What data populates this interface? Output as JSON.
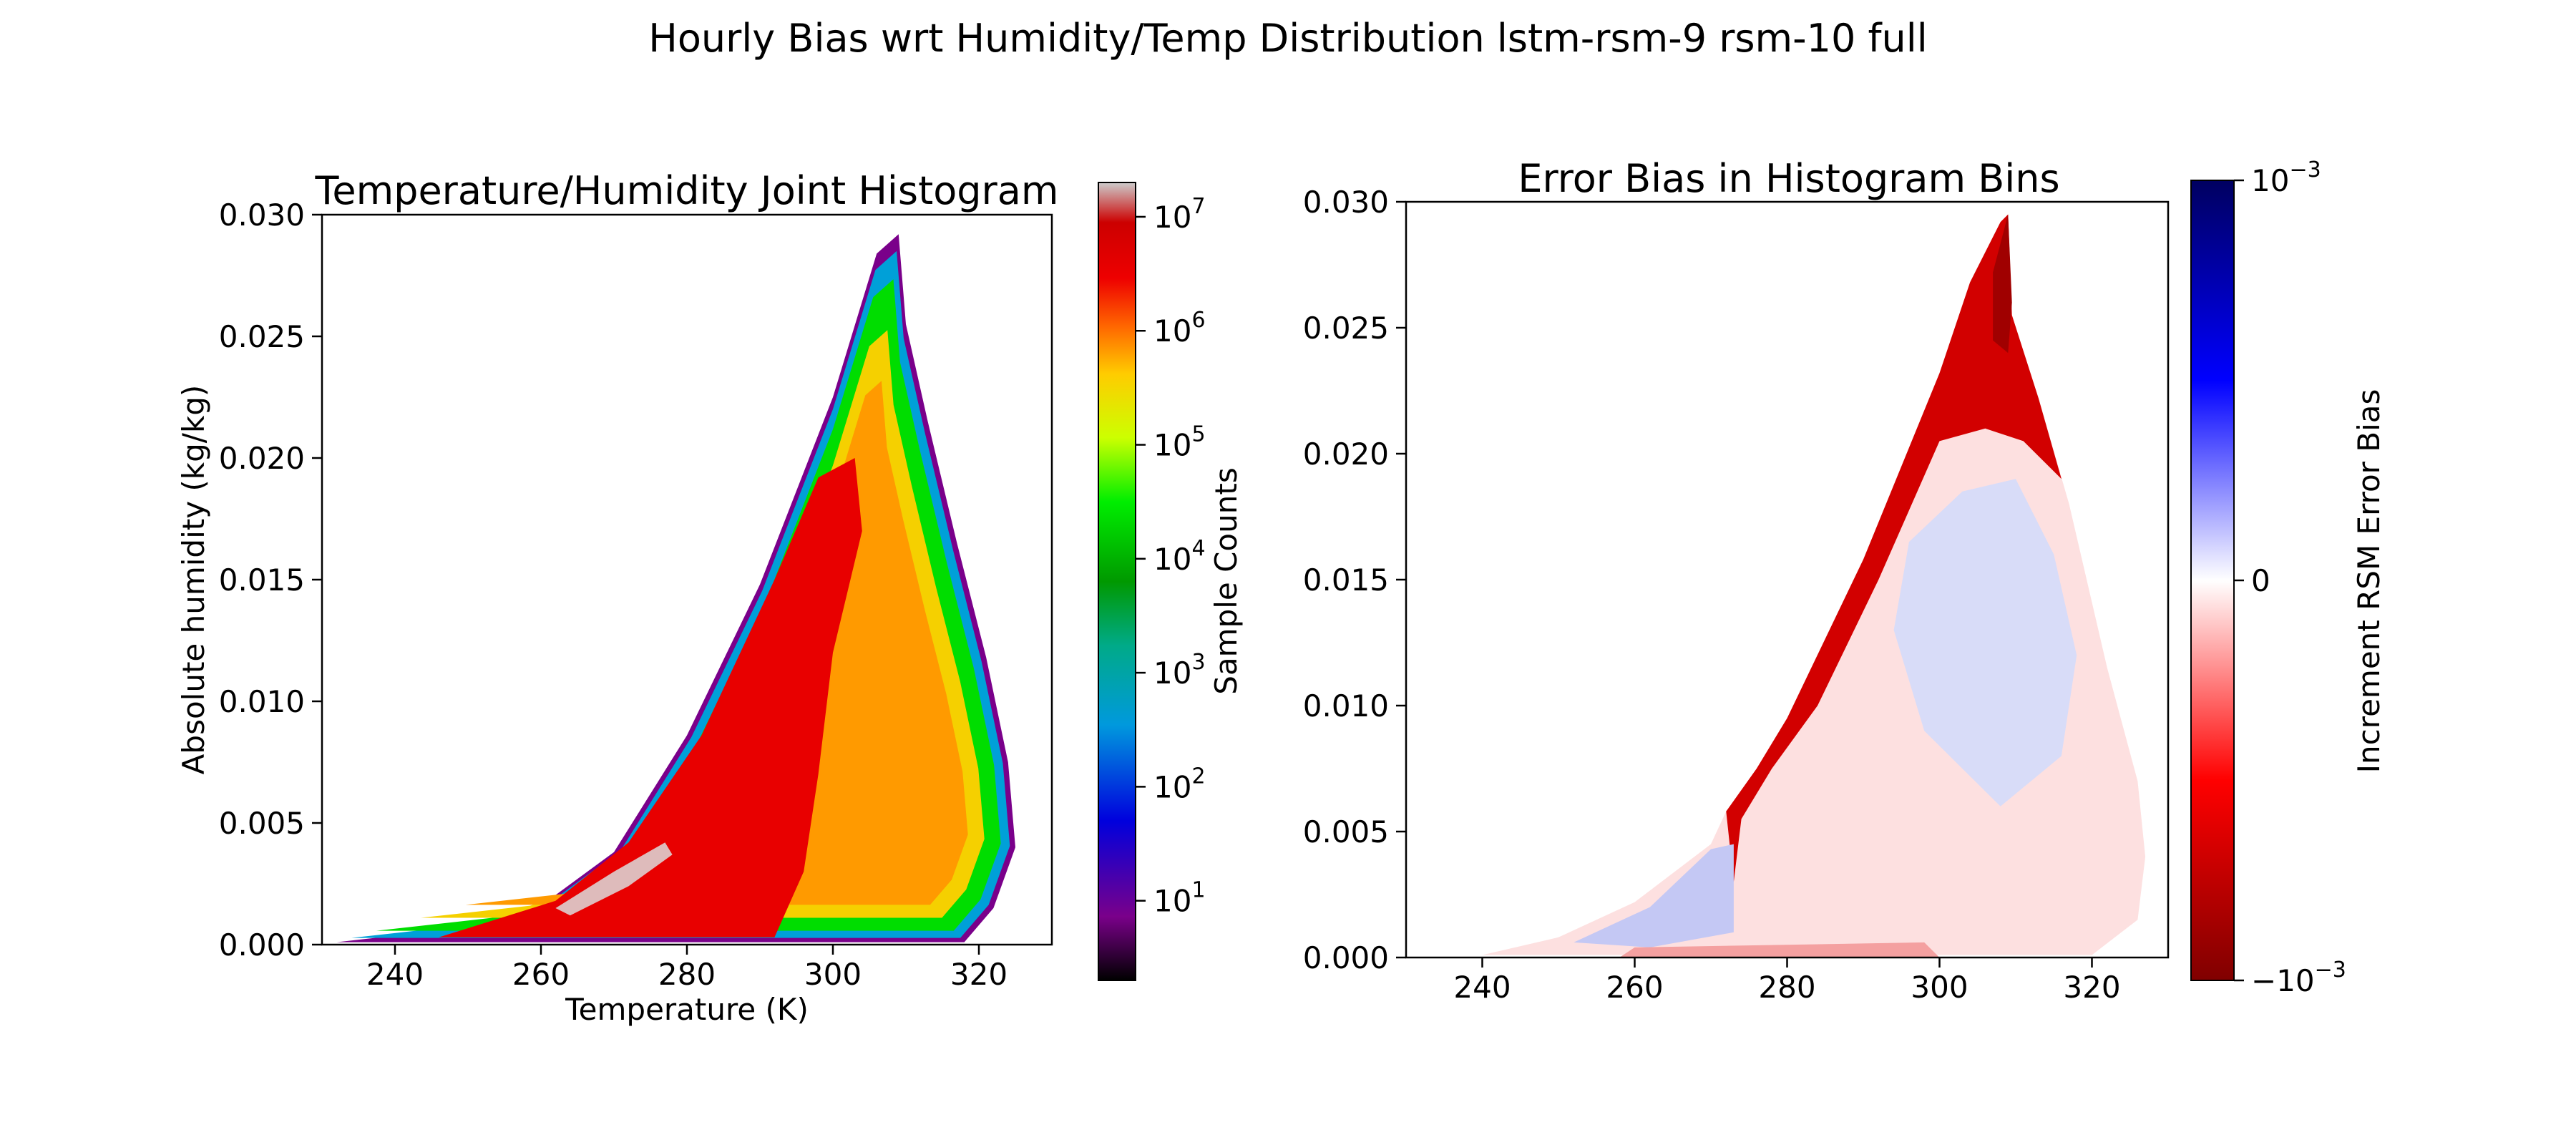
{
  "figure": {
    "suptitle": "Hourly Bias wrt Humidity/Temp Distribution lstm-rsm-9 rsm-10 full"
  },
  "chart_data": [
    {
      "type": "heatmap",
      "title": "Temperature/Humidity Joint Histogram",
      "xlabel": "Temperature (K)",
      "ylabel": "Absolute humidity (kg/kg)",
      "xlim": [
        230,
        330
      ],
      "ylim": [
        0.0,
        0.03
      ],
      "xticks": [
        240,
        260,
        280,
        300,
        320
      ],
      "yticks": [
        "0.000",
        "0.005",
        "0.010",
        "0.015",
        "0.020",
        "0.025",
        "0.030"
      ],
      "colorbar": {
        "label": "Sample Counts",
        "scale": "log",
        "range": [
          2,
          20000000
        ],
        "ticks": [
          {
            "base": "10",
            "exp": "1",
            "value": 10
          },
          {
            "base": "10",
            "exp": "2",
            "value": 100
          },
          {
            "base": "10",
            "exp": "3",
            "value": 1000
          },
          {
            "base": "10",
            "exp": "4",
            "value": 10000
          },
          {
            "base": "10",
            "exp": "5",
            "value": 100000
          },
          {
            "base": "10",
            "exp": "6",
            "value": 1000000
          },
          {
            "base": "10",
            "exp": "7",
            "value": 10000000
          }
        ],
        "colormap": "nipy_spectral"
      },
      "data_boundary": {
        "upper_edge": [
          [
            232,
            0.0001
          ],
          [
            250,
            0.0007
          ],
          [
            260,
            0.0016
          ],
          [
            270,
            0.0038
          ],
          [
            280,
            0.0086
          ],
          [
            290,
            0.0148
          ],
          [
            300,
            0.0225
          ],
          [
            306,
            0.0284
          ],
          [
            309,
            0.0292
          ]
        ],
        "lower_edge": [
          [
            309,
            0.0292
          ],
          [
            310,
            0.0255
          ],
          [
            313,
            0.0215
          ],
          [
            317,
            0.0165
          ],
          [
            321,
            0.0118
          ],
          [
            324,
            0.0075
          ],
          [
            325,
            0.004
          ],
          [
            322,
            0.0015
          ],
          [
            318,
            0.0001
          ]
        ]
      },
      "density_peak": {
        "temperature": 275,
        "humidity": 0.003
      }
    },
    {
      "type": "heatmap",
      "title": "Error Bias in Histogram Bins",
      "xlabel": "",
      "ylabel": "",
      "xlim": [
        230,
        330
      ],
      "ylim": [
        0.0,
        0.03
      ],
      "xticks": [
        240,
        260,
        280,
        300,
        320
      ],
      "yticks": [
        "0.000",
        "0.005",
        "0.010",
        "0.015",
        "0.020",
        "0.025",
        "0.030"
      ],
      "colorbar": {
        "label": "Increment RSM Error Bias",
        "scale": "symlog",
        "range": [
          -0.001,
          0.001
        ],
        "ticks": [
          {
            "prefix": "−",
            "base": "10",
            "exp": "−3",
            "value": -0.001
          },
          {
            "text": "0",
            "value": 0
          },
          {
            "prefix": "",
            "base": "10",
            "exp": "−3",
            "value": 0.001
          }
        ],
        "colormap": "seismic_r"
      },
      "data_boundary": {
        "upper_edge": [
          [
            240,
            0.0001
          ],
          [
            250,
            0.0008
          ],
          [
            260,
            0.0022
          ],
          [
            270,
            0.0045
          ],
          [
            272,
            0.0058
          ],
          [
            276,
            0.0075
          ],
          [
            280,
            0.0095
          ],
          [
            290,
            0.0158
          ],
          [
            300,
            0.0232
          ],
          [
            304,
            0.0268
          ],
          [
            308,
            0.0292
          ],
          [
            309,
            0.0295
          ]
        ],
        "lower_edge": [
          [
            309,
            0.0295
          ],
          [
            309.5,
            0.0255
          ],
          [
            313,
            0.0222
          ],
          [
            317,
            0.018
          ],
          [
            322,
            0.0115
          ],
          [
            326,
            0.007
          ],
          [
            327,
            0.004
          ],
          [
            326,
            0.0015
          ],
          [
            320,
            0.0001
          ]
        ]
      },
      "regions": [
        {
          "description": "strong negative bias along humid edge",
          "sign": "negative"
        },
        {
          "description": "weak positive bias in warm humid interior",
          "center": [
            305,
            0.013
          ],
          "sign": "positive"
        },
        {
          "description": "weak positive bias near cold dry tail",
          "center": [
            265,
            0.003
          ],
          "sign": "positive"
        }
      ]
    }
  ]
}
